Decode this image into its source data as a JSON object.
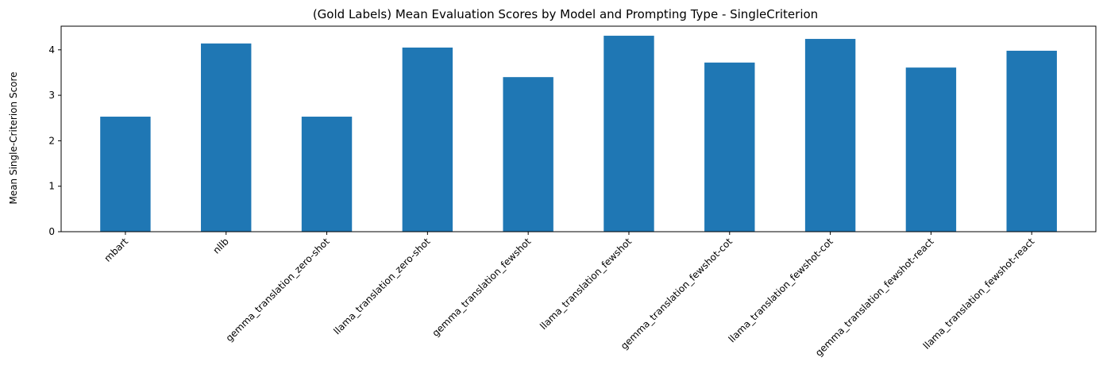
{
  "chart_data": {
    "type": "bar",
    "title": "(Gold Labels) Mean Evaluation Scores by Model and Prompting Type - SingleCriterion",
    "xlabel": "",
    "ylabel": "Mean Single-Criterion Score",
    "ylim": [
      0,
      4.52
    ],
    "yticks": [
      "0",
      "1",
      "2",
      "3",
      "4"
    ],
    "grid": false,
    "bar_color": "#1f77b4",
    "categories": [
      "mbart",
      "nllb",
      "gemma_translation_zero-shot",
      "llama_translation_zero-shot",
      "gemma_translation_fewshot",
      "llama_translation_fewshot",
      "gemma_translation_fewshot-cot",
      "llama_translation_fewshot-cot",
      "gemma_translation_fewshot-react",
      "llama_translation_fewshot-react"
    ],
    "values": [
      2.53,
      4.14,
      2.53,
      4.05,
      3.4,
      4.31,
      3.72,
      4.24,
      3.61,
      3.98
    ]
  }
}
